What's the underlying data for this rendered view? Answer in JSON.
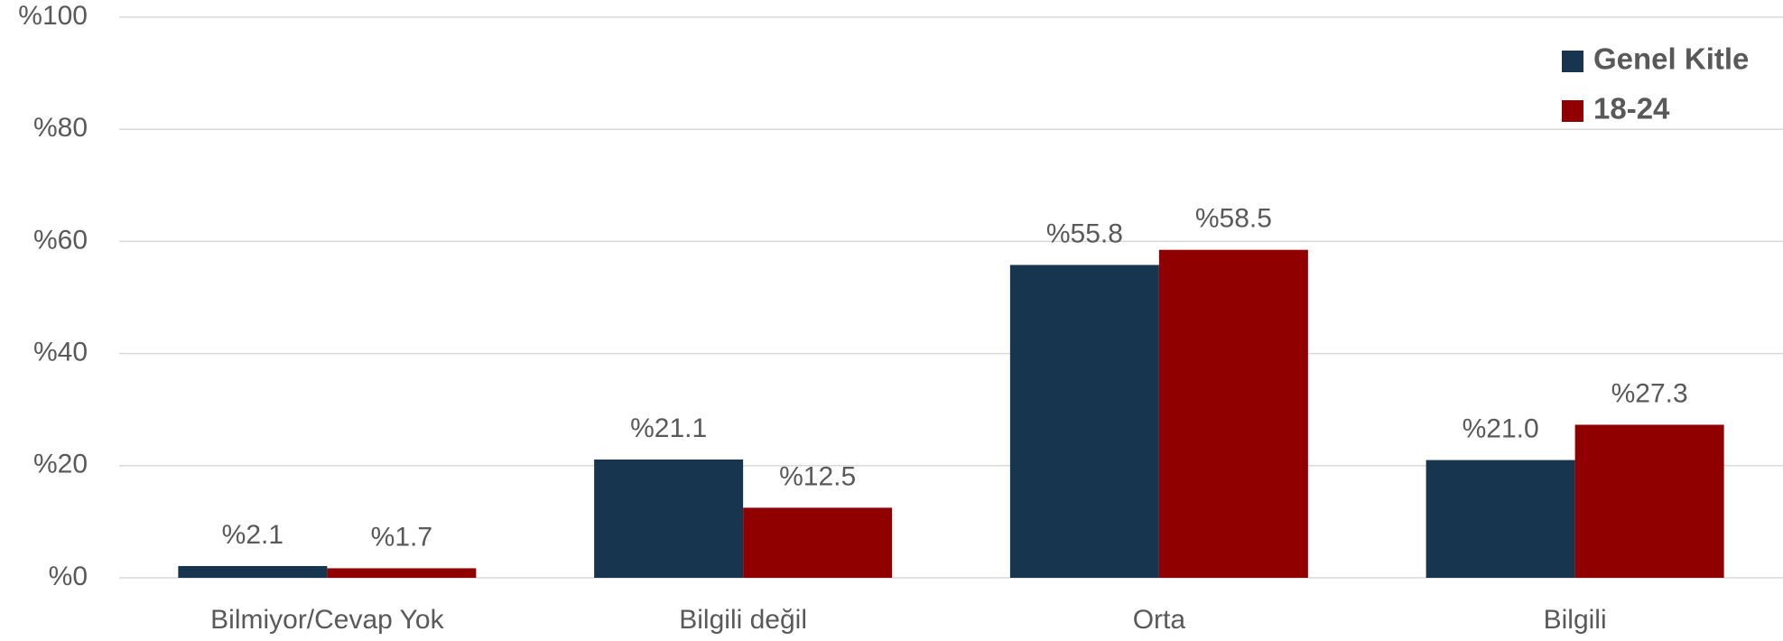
{
  "chart_data": {
    "type": "bar",
    "categories": [
      "Bilmiyor/Cevap Yok",
      "Bilgili değil",
      "Orta",
      "Bilgili"
    ],
    "series": [
      {
        "name": "Genel Kitle",
        "color": "#17354f",
        "values": [
          2.1,
          21.1,
          55.8,
          21.0
        ],
        "value_labels": [
          "%2.1",
          "%21.1",
          "%55.8",
          "%21.0"
        ]
      },
      {
        "name": "18-24",
        "color": "#900000",
        "values": [
          1.7,
          12.5,
          58.5,
          27.3
        ],
        "value_labels": [
          "%1.7",
          "%12.5",
          "%58.5",
          "%27.3"
        ]
      }
    ],
    "ylim": [
      0,
      100
    ],
    "yticks": [
      {
        "value": 0,
        "label": "%0"
      },
      {
        "value": 20,
        "label": "%20"
      },
      {
        "value": 40,
        "label": "%40"
      },
      {
        "value": 60,
        "label": "%60"
      },
      {
        "value": 80,
        "label": "%80"
      },
      {
        "value": 100,
        "label": "%100"
      }
    ],
    "grid": true,
    "legend": "top-right"
  }
}
